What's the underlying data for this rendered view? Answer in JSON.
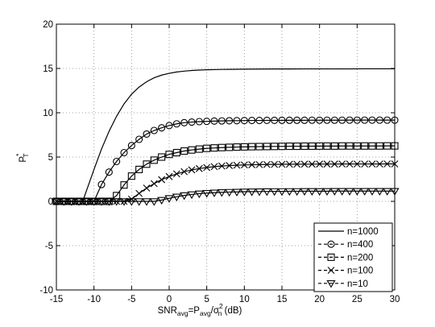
{
  "chart_data": {
    "type": "line",
    "xlabel": {
      "main": "SNR",
      "sub1": "avg",
      "mid": "=P",
      "sub2": "avg",
      "slash": "/σ",
      "sup": "2",
      "sub3": "n",
      "tail": " (dB)"
    },
    "ylabel": {
      "main": "P",
      "sup": "*",
      "sub": "T"
    },
    "xlim": [
      -15,
      30
    ],
    "ylim": [
      -10,
      20
    ],
    "xticks": [
      "-15",
      "-10",
      "-5",
      "0",
      "5",
      "10",
      "15",
      "20",
      "25",
      "30"
    ],
    "yticks": [
      "-10",
      "-5",
      "0",
      "5",
      "10",
      "15",
      "20"
    ],
    "grid": true,
    "legend_position": "bottom-right",
    "series": [
      {
        "name": "n=1000",
        "marker": "none",
        "x": [
          -15,
          -14,
          -13,
          -12,
          -11.5,
          -11,
          -10,
          -9,
          -8,
          -7,
          -6,
          -5,
          -4,
          -3,
          -2,
          -1,
          0,
          1,
          2,
          3,
          4,
          5,
          6,
          7,
          8,
          9,
          10,
          12,
          14,
          16,
          18,
          20,
          22,
          24,
          26,
          28,
          30
        ],
        "y": [
          0,
          0,
          0,
          0,
          0,
          1.2,
          3.6,
          5.9,
          7.9,
          9.6,
          11,
          12.1,
          12.9,
          13.5,
          13.95,
          14.25,
          14.45,
          14.6,
          14.7,
          14.77,
          14.82,
          14.85,
          14.87,
          14.89,
          14.9,
          14.91,
          14.92,
          14.93,
          14.94,
          14.94,
          14.95,
          14.95,
          14.95,
          14.95,
          14.96,
          14.96,
          14.96
        ]
      },
      {
        "name": "n=400",
        "marker": "circle",
        "x": [
          -15,
          -14,
          -13,
          -12,
          -11,
          -10,
          -9,
          -8,
          -7,
          -6,
          -5,
          -4,
          -3,
          -2,
          -1,
          0,
          1,
          2,
          3,
          4,
          5,
          6,
          7,
          8,
          9,
          10,
          11,
          12,
          13,
          14,
          15,
          16,
          17,
          18,
          19,
          20,
          21,
          22,
          23,
          24,
          25,
          26,
          27,
          28,
          29,
          30
        ],
        "y": [
          0,
          0,
          0,
          0,
          0,
          0,
          1.9,
          3.3,
          4.5,
          5.5,
          6.3,
          7,
          7.6,
          8,
          8.3,
          8.55,
          8.75,
          8.88,
          8.95,
          9,
          9.03,
          9.06,
          9.08,
          9.1,
          9.11,
          9.12,
          9.13,
          9.13,
          9.14,
          9.14,
          9.15,
          9.15,
          9.15,
          9.15,
          9.16,
          9.16,
          9.16,
          9.16,
          9.16,
          9.17,
          9.17,
          9.17,
          9.17,
          9.17,
          9.17,
          9.17
        ]
      },
      {
        "name": "n=200",
        "marker": "square",
        "x": [
          -15,
          -14,
          -13,
          -12,
          -11,
          -10,
          -9,
          -8,
          -7,
          -6,
          -5,
          -4,
          -3,
          -2,
          -1,
          0,
          1,
          2,
          3,
          4,
          5,
          6,
          7,
          8,
          9,
          10,
          11,
          12,
          13,
          14,
          15,
          16,
          17,
          18,
          19,
          20,
          21,
          22,
          23,
          24,
          25,
          26,
          27,
          28,
          29,
          30
        ],
        "y": [
          0,
          0,
          0,
          0,
          0,
          0,
          0,
          0,
          0.65,
          1.85,
          2.85,
          3.6,
          4.2,
          4.65,
          5,
          5.3,
          5.5,
          5.68,
          5.8,
          5.9,
          5.98,
          6.03,
          6.07,
          6.1,
          6.13,
          6.15,
          6.17,
          6.18,
          6.19,
          6.2,
          6.21,
          6.22,
          6.22,
          6.23,
          6.23,
          6.24,
          6.24,
          6.24,
          6.25,
          6.25,
          6.25,
          6.25,
          6.25,
          6.25,
          6.26,
          6.26
        ]
      },
      {
        "name": "n=100",
        "marker": "x",
        "x": [
          -15,
          -14,
          -13,
          -12,
          -11,
          -10,
          -9,
          -8,
          -7,
          -6,
          -5,
          -4,
          -3,
          -2,
          -1,
          0,
          1,
          2,
          3,
          4,
          5,
          6,
          7,
          8,
          9,
          10,
          11,
          12,
          13,
          14,
          15,
          16,
          17,
          18,
          19,
          20,
          21,
          22,
          23,
          24,
          25,
          26,
          27,
          28,
          29,
          30
        ],
        "y": [
          0,
          0,
          0,
          0,
          0,
          0,
          0,
          0,
          0,
          0,
          0.25,
          0.9,
          1.5,
          2,
          2.45,
          2.8,
          3.1,
          3.35,
          3.55,
          3.7,
          3.82,
          3.92,
          3.99,
          4.04,
          4.08,
          4.11,
          4.13,
          4.15,
          4.16,
          4.17,
          4.18,
          4.19,
          4.19,
          4.2,
          4.2,
          4.21,
          4.21,
          4.21,
          4.22,
          4.22,
          4.22,
          4.22,
          4.22,
          4.22,
          4.23,
          4.23
        ]
      },
      {
        "name": "n=10",
        "marker": "triangle-down",
        "x": [
          -15,
          -14,
          -13,
          -12,
          -11,
          -10,
          -9,
          -8,
          -7,
          -6,
          -5,
          -4,
          -3,
          -2,
          -1,
          0,
          1,
          2,
          3,
          4,
          5,
          6,
          7,
          8,
          9,
          10,
          11,
          12,
          13,
          14,
          15,
          16,
          17,
          18,
          19,
          20,
          21,
          22,
          23,
          24,
          25,
          26,
          27,
          28,
          29,
          30
        ],
        "y": [
          0,
          0,
          0,
          0,
          0,
          0,
          0,
          0,
          0,
          0,
          0,
          0,
          0,
          0,
          0.15,
          0.35,
          0.52,
          0.67,
          0.78,
          0.87,
          0.93,
          0.98,
          1.02,
          1.05,
          1.07,
          1.09,
          1.1,
          1.11,
          1.12,
          1.13,
          1.13,
          1.14,
          1.14,
          1.15,
          1.15,
          1.15,
          1.15,
          1.16,
          1.16,
          1.16,
          1.16,
          1.16,
          1.16,
          1.16,
          1.16,
          1.16
        ]
      }
    ]
  }
}
